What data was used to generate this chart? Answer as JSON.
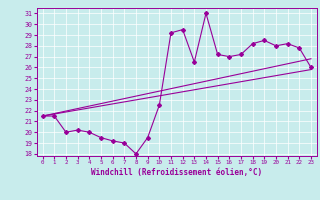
{
  "title": "",
  "xlabel": "Windchill (Refroidissement éolien,°C)",
  "bg_color": "#c8ecec",
  "line_color": "#990099",
  "xlim": [
    -0.5,
    23.5
  ],
  "ylim": [
    17.8,
    31.5
  ],
  "xticks": [
    0,
    1,
    2,
    3,
    4,
    5,
    6,
    7,
    8,
    9,
    10,
    11,
    12,
    13,
    14,
    15,
    16,
    17,
    18,
    19,
    20,
    21,
    22,
    23
  ],
  "yticks": [
    18,
    19,
    20,
    21,
    22,
    23,
    24,
    25,
    26,
    27,
    28,
    29,
    30,
    31
  ],
  "series": [
    [
      0,
      21.5
    ],
    [
      1,
      21.5
    ],
    [
      2,
      20.0
    ],
    [
      3,
      20.2
    ],
    [
      4,
      20.0
    ],
    [
      5,
      19.5
    ],
    [
      6,
      19.2
    ],
    [
      7,
      19.0
    ],
    [
      8,
      18.0
    ],
    [
      9,
      19.5
    ],
    [
      10,
      22.5
    ],
    [
      11,
      29.2
    ],
    [
      12,
      29.5
    ],
    [
      13,
      26.5
    ],
    [
      14,
      31.0
    ],
    [
      15,
      27.2
    ],
    [
      16,
      27.0
    ],
    [
      17,
      27.2
    ],
    [
      18,
      28.2
    ],
    [
      19,
      28.5
    ],
    [
      20,
      28.0
    ],
    [
      21,
      28.2
    ],
    [
      22,
      27.8
    ],
    [
      23,
      26.0
    ]
  ],
  "trend_line": [
    [
      0,
      21.5
    ],
    [
      23,
      25.8
    ]
  ],
  "trend_line2": [
    [
      0,
      21.5
    ],
    [
      23,
      26.8
    ]
  ]
}
